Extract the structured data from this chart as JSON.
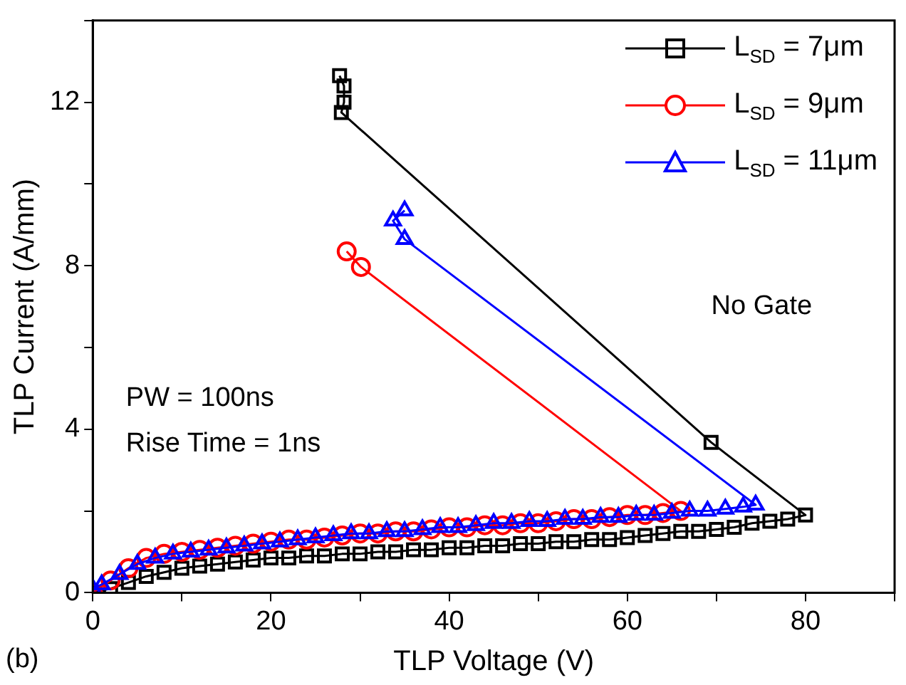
{
  "chart_data": {
    "type": "line",
    "xlabel": "TLP Voltage (V)",
    "ylabel": "TLP Current (A/mm)",
    "xlim": [
      0,
      90
    ],
    "ylim": [
      0,
      14
    ],
    "xticks": [
      0,
      {
        "value": 10,
        "label": null
      },
      20,
      {
        "value": 30,
        "label": null
      },
      40,
      {
        "value": 50,
        "label": null
      },
      60,
      {
        "value": 70,
        "label": null
      },
      80,
      {
        "value": 90,
        "label": null
      }
    ],
    "yticks": [
      0,
      {
        "value": 2,
        "label": null
      },
      4,
      {
        "value": 6,
        "label": null
      },
      8,
      {
        "value": 10,
        "label": null
      },
      12,
      {
        "value": 14,
        "label": null
      }
    ],
    "grid": false,
    "legend": "top right",
    "line_style": "solid",
    "annotations": [
      "No Gate",
      "PW = 100ns",
      "Rise Time = 1ns",
      "(b)"
    ],
    "series": [
      {
        "name": "L$_{SD}$ = 7μm",
        "color": "#000000",
        "marker": "square",
        "x": [
          0,
          2,
          4,
          6,
          8,
          10,
          12,
          14,
          16,
          18,
          20,
          22,
          24,
          26,
          28,
          30,
          32,
          34,
          36,
          38,
          40,
          42,
          44,
          46,
          48,
          50,
          52,
          54,
          56,
          58,
          60,
          62,
          64,
          66,
          68,
          70,
          72,
          74,
          76,
          78,
          80,
          69.4,
          27.9,
          28.2,
          28.2,
          27.7
        ],
        "values": [
          0,
          0.1,
          0.25,
          0.4,
          0.5,
          0.6,
          0.65,
          0.7,
          0.75,
          0.8,
          0.85,
          0.85,
          0.9,
          0.9,
          0.95,
          0.95,
          1,
          1,
          1.05,
          1.05,
          1.1,
          1.1,
          1.15,
          1.15,
          1.2,
          1.2,
          1.25,
          1.25,
          1.3,
          1.3,
          1.35,
          1.4,
          1.45,
          1.5,
          1.5,
          1.55,
          1.6,
          1.7,
          1.75,
          1.8,
          1.9,
          3.68,
          11.75,
          12,
          12.4,
          12.65
        ]
      },
      {
        "name": "L$_{SD}$ = 9μm",
        "color": "#ff0000",
        "marker": "circle",
        "x": [
          0,
          2,
          4,
          6,
          8,
          10,
          12,
          14,
          16,
          18,
          20,
          22,
          24,
          26,
          28,
          30,
          32,
          34,
          36,
          38,
          40,
          42,
          44,
          46,
          48,
          50,
          52,
          54,
          56,
          58,
          60,
          62,
          64,
          66,
          30.1,
          28.5
        ],
        "values": [
          0,
          0.3,
          0.6,
          0.85,
          0.95,
          1,
          1.05,
          1.1,
          1.15,
          1.2,
          1.25,
          1.3,
          1.3,
          1.35,
          1.4,
          1.45,
          1.45,
          1.5,
          1.5,
          1.55,
          1.6,
          1.6,
          1.65,
          1.65,
          1.7,
          1.7,
          1.75,
          1.8,
          1.8,
          1.85,
          1.9,
          1.9,
          1.95,
          2,
          7.97,
          8.35
        ]
      },
      {
        "name": "L$_{SD}$ = 11μm",
        "color": "#0000ff",
        "marker": "triangle",
        "x": [
          0,
          1,
          3,
          5,
          7,
          9,
          11,
          13,
          15,
          17,
          19,
          21,
          23,
          25,
          27,
          29,
          31,
          33,
          35,
          37,
          39,
          41,
          43,
          45,
          47,
          49,
          51,
          53,
          55,
          57,
          59,
          61,
          63,
          65,
          67,
          69,
          71,
          73,
          74.4,
          35,
          33.7,
          35
        ],
        "values": [
          0.1,
          0.2,
          0.45,
          0.7,
          0.85,
          0.95,
          1,
          1.05,
          1.1,
          1.15,
          1.2,
          1.25,
          1.3,
          1.35,
          1.4,
          1.45,
          1.45,
          1.5,
          1.5,
          1.55,
          1.6,
          1.6,
          1.65,
          1.7,
          1.7,
          1.75,
          1.75,
          1.8,
          1.8,
          1.85,
          1.85,
          1.9,
          1.9,
          1.95,
          2,
          2,
          2.05,
          2.1,
          2.15,
          8.65,
          9.1,
          9.35
        ]
      }
    ]
  }
}
